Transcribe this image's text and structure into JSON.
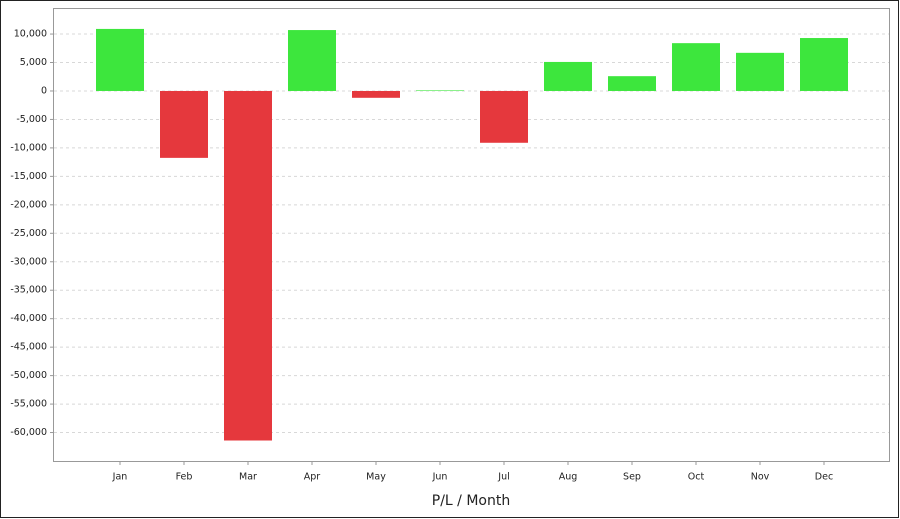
{
  "chart_data": {
    "type": "bar",
    "xlabel": "P/L / Month",
    "categories": [
      "Jan",
      "Feb",
      "Mar",
      "Apr",
      "May",
      "Jun",
      "Jul",
      "Aug",
      "Sep",
      "Oct",
      "Nov",
      "Dec"
    ],
    "values": [
      10900,
      -11750,
      -61400,
      10700,
      -1200,
      100,
      -9100,
      5100,
      2600,
      8400,
      6700,
      9300
    ],
    "positive_color": "#3de63d",
    "negative_color": "#e5383d",
    "ylim": [
      -65000,
      14400
    ],
    "yticks": [
      {
        "value": 10000,
        "label": "10,000"
      },
      {
        "value": 5000,
        "label": "5,000"
      },
      0,
      {
        "value": -5000,
        "label": "-5,000"
      },
      {
        "value": -10000,
        "label": "-10,000"
      },
      {
        "value": -15000,
        "label": "-15,000"
      },
      {
        "value": -20000,
        "label": "-20,000"
      },
      {
        "value": -25000,
        "label": "-25,000"
      },
      {
        "value": -30000,
        "label": "-30,000"
      },
      {
        "value": -35000,
        "label": "-35,000"
      },
      {
        "value": -40000,
        "label": "-40,000"
      },
      {
        "value": -45000,
        "label": "-45,000"
      },
      {
        "value": -50000,
        "label": "-50,000"
      },
      {
        "value": -55000,
        "label": "-55,000"
      },
      {
        "value": -60000,
        "label": "-60,000"
      }
    ],
    "grid": true
  }
}
